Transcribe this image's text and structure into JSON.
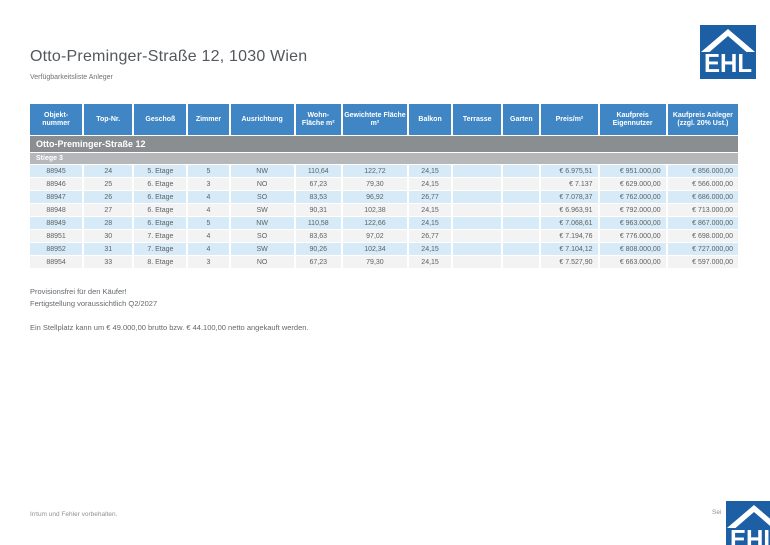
{
  "header": {
    "title": "Otto-Preminger-Straße 12, 1030 Wien",
    "subtitle": "Verfügbarkeitsliste Anleger",
    "logo_text": "EHL",
    "logo_color": "#1d5fa5"
  },
  "table": {
    "header_color": "#4086c5",
    "row_blue": "#d6ebf7",
    "row_gray": "#f3f3f3",
    "columns": [
      "Objekt- nummer",
      "Top-Nr.",
      "Geschoß",
      "Zimmer",
      "Ausrichtung",
      "Wohn- Fläche m²",
      "Gewichtete Fläche m²",
      "Balkon",
      "Terrasse",
      "Garten",
      "Preis/m²",
      "Kaufpreis Eigennutzer",
      "Kaufpreis Anleger (zzgl. 20% Ust.)"
    ],
    "group_header": "Otto-Preminger-Straße 12",
    "subgroup_header": "Stiege 3",
    "rows": [
      [
        "88945",
        "24",
        "5. Etage",
        "5",
        "NW",
        "110,64",
        "122,72",
        "24,15",
        "",
        "",
        "€ 6.975,51",
        "€ 951.000,00",
        "€ 856.000,00"
      ],
      [
        "88946",
        "25",
        "6. Etage",
        "3",
        "NO",
        "67,23",
        "79,30",
        "24,15",
        "",
        "",
        "€ 7.137",
        "€ 629.000,00",
        "€ 566.000,00"
      ],
      [
        "88947",
        "26",
        "6. Etage",
        "4",
        "SO",
        "83,53",
        "96,92",
        "26,77",
        "",
        "",
        "€ 7.078,37",
        "€ 762.000,00",
        "€ 686.000,00"
      ],
      [
        "88948",
        "27",
        "6. Etage",
        "4",
        "SW",
        "90,31",
        "102,38",
        "24,15",
        "",
        "",
        "€ 6.963,91",
        "€ 792.000,00",
        "€ 713.000,00"
      ],
      [
        "88949",
        "28",
        "6. Etage",
        "5",
        "NW",
        "110,58",
        "122,66",
        "24,15",
        "",
        "",
        "€ 7.068,61",
        "€ 963.000,00",
        "€ 867.000,00"
      ],
      [
        "88951",
        "30",
        "7. Etage",
        "4",
        "SO",
        "83,63",
        "97,02",
        "26,77",
        "",
        "",
        "€ 7.194,76",
        "€ 776.000,00",
        "€ 698.000,00"
      ],
      [
        "88952",
        "31",
        "7. Etage",
        "4",
        "SW",
        "90,26",
        "102,34",
        "24,15",
        "",
        "",
        "€ 7.104,12",
        "€ 808.000,00",
        "€ 727.000,00"
      ],
      [
        "88954",
        "33",
        "8. Etage",
        "3",
        "NO",
        "67,23",
        "79,30",
        "24,15",
        "",
        "",
        "€ 7.527,90",
        "€ 663.000,00",
        "€ 597.000,00"
      ]
    ]
  },
  "notes": {
    "note1": "Provisionsfrei für den Käufer!",
    "note2": "Fertigstellung voraussichtlich Q2/2027",
    "note3": "Ein Stellplatz kann um € 49.000,00 brutto bzw. € 44.100,00 netto angekauft werden."
  },
  "footer": {
    "disclaimer": "Irrtum und Fehler vorbehalten.",
    "page_label": "Sei"
  }
}
